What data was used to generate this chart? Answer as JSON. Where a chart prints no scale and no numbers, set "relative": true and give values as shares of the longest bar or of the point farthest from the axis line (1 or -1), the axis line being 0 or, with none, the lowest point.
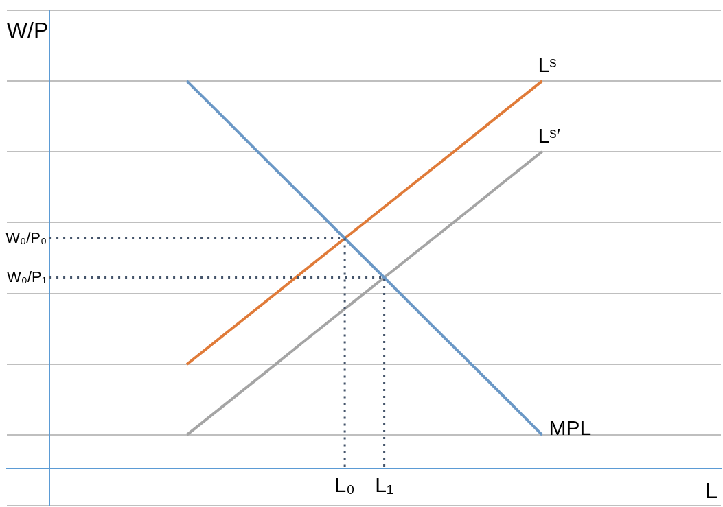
{
  "chart_data": {
    "type": "line",
    "relative": true,
    "categories": [
      null,
      null,
      null,
      null,
      "L₀",
      "L₁",
      null,
      null,
      null,
      null
    ],
    "grid": "y",
    "legend": false,
    "marker": "none",
    "series": [
      {
        "name": "MPL",
        "color": "#6b98c6",
        "values": [
          1,
          0.899,
          0.797,
          0.696,
          0.594,
          0.493,
          0.391,
          0.29,
          0.189,
          0.087
        ]
      },
      {
        "name": "Lˢ",
        "color": "#e07b39",
        "values": [
          0.269,
          0.35,
          0.431,
          0.513,
          0.594,
          0.675,
          0.756,
          0.837,
          0.919,
          1
        ]
      },
      {
        "name": "Lˢ′",
        "color": "#a5a5a5",
        "values": [
          0.087,
          0.168,
          0.249,
          0.331,
          0.412,
          0.493,
          0.574,
          0.655,
          0.737,
          0.818
        ]
      }
    ],
    "ref_lines": [
      {
        "axis": "y",
        "value": 0.594,
        "label": "W₀/P₀",
        "color": "#44546a",
        "line_style": "dotted"
      },
      {
        "axis": "y",
        "value": 0.493,
        "label": "W₀/P₁",
        "color": "#44546a",
        "line_style": "dotted"
      }
    ],
    "annotations": [
      "W/P",
      "L"
    ]
  }
}
